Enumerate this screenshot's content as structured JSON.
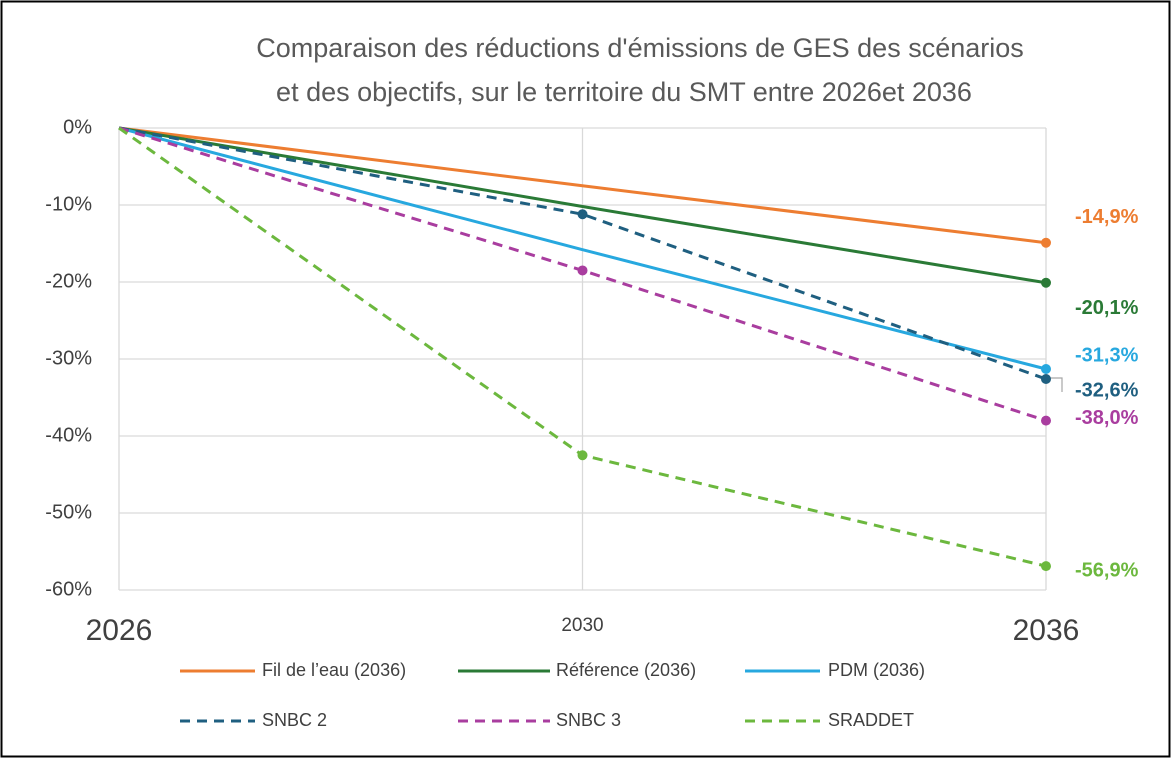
{
  "chart_data": {
    "type": "line",
    "title": [
      "Comparaison des réductions d'émissions de GES des scénarios",
      "et des objectifs, sur le territoire du SMT entre 2026et 2036"
    ],
    "categories": [
      "2026",
      "2030",
      "2036"
    ],
    "ylim": [
      -60,
      0
    ],
    "yticks": [
      {
        "value": 0,
        "label": "0%"
      },
      {
        "value": -10,
        "label": "-10%"
      },
      {
        "value": -20,
        "label": "-20%"
      },
      {
        "value": -30,
        "label": "-30%"
      },
      {
        "value": -40,
        "label": "-40%"
      },
      {
        "value": -50,
        "label": "-50%"
      },
      {
        "value": -60,
        "label": "-60%"
      }
    ],
    "grid": true,
    "legend": "bottom",
    "series": [
      {
        "name": "Fil de l’eau (2036)",
        "color": "#ed7d31",
        "dashed": false,
        "values": [
          0,
          -7.5,
          -14.9
        ],
        "value_labels": [
          null,
          null,
          "-14,9%"
        ]
      },
      {
        "name": "Référence (2036)",
        "color": "#2a7a36",
        "dashed": false,
        "values": [
          0,
          -10.2,
          -20.1
        ],
        "value_labels": [
          null,
          null,
          "-20,1%"
        ]
      },
      {
        "name": "PDM (2036)",
        "color": "#27a8df",
        "dashed": false,
        "values": [
          0,
          -15.8,
          -31.3
        ],
        "value_labels": [
          null,
          null,
          "-31,3%"
        ]
      },
      {
        "name": "SNBC 2",
        "color": "#1f5f80",
        "dashed": true,
        "values": [
          0,
          -11.2,
          -32.6
        ],
        "value_labels": [
          null,
          null,
          "-32,6%"
        ]
      },
      {
        "name": "SNBC 3",
        "color": "#a93d9f",
        "dashed": true,
        "values": [
          0,
          -18.5,
          -38.0
        ],
        "value_labels": [
          null,
          null,
          "-38,0%"
        ]
      },
      {
        "name": "SRADDET",
        "color": "#6cb83e",
        "dashed": true,
        "values": [
          0,
          -42.5,
          -56.9
        ],
        "value_labels": [
          null,
          null,
          "-56,9%"
        ]
      }
    ]
  }
}
